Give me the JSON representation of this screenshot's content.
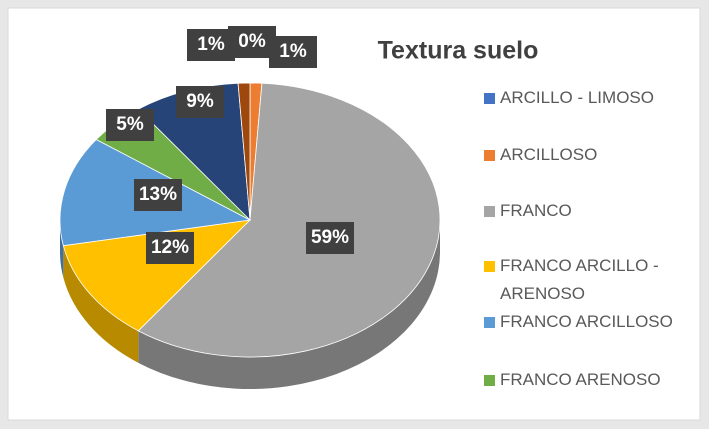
{
  "chart_data": {
    "type": "pie3d",
    "title": "Textura suelo",
    "categories": [
      "ARCILLO - LIMOSO",
      "ARCILLOSO",
      "FRANCO",
      "FRANCO ARCILLO - ARENOSO",
      "FRANCO ARCILLOSO",
      "FRANCO ARENOSO",
      null,
      null
    ],
    "values": [
      0,
      1,
      59,
      12,
      13,
      5,
      9,
      1
    ],
    "value_labels": [
      "0%",
      "1%",
      "59%",
      "12%",
      "13%",
      "5%",
      "9%",
      "1%"
    ],
    "colors": [
      "#4472c4",
      "#ed7d31",
      "#a5a5a5",
      "#ffc000",
      "#5b9bd5",
      "#70ad47",
      "#264478",
      "#9e480e"
    ],
    "legend": "right"
  }
}
